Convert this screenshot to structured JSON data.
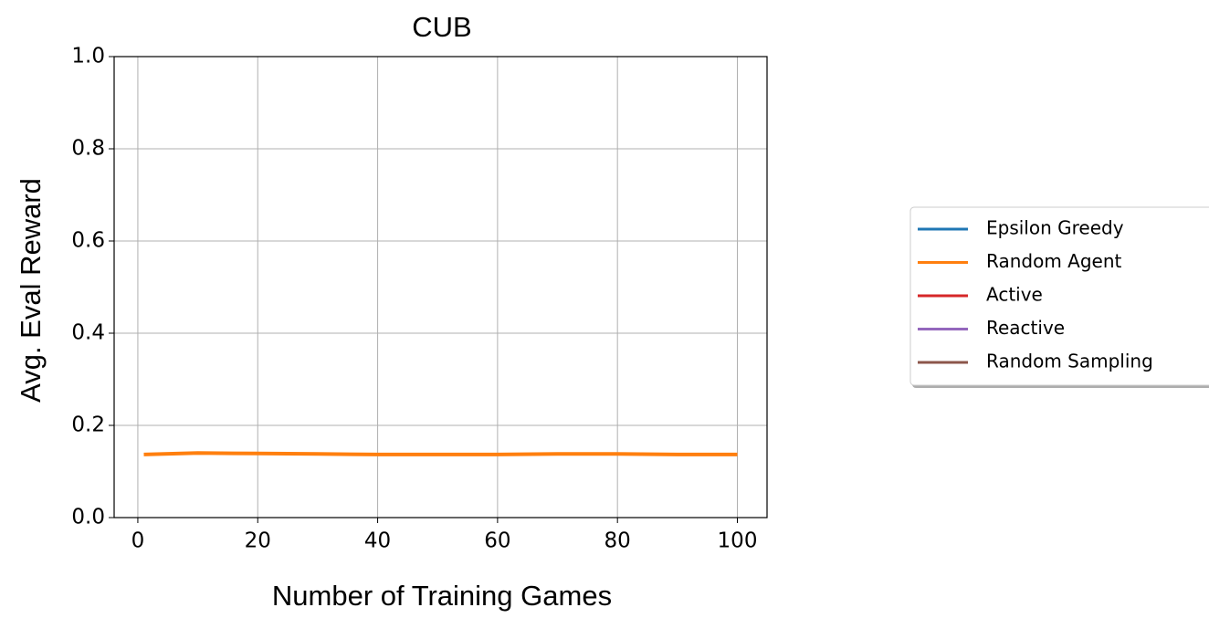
{
  "chart_data": {
    "type": "line",
    "title": "CUB",
    "xlabel": "Number of Training Games",
    "ylabel": "Avg. Eval Reward",
    "x": [
      1,
      10,
      20,
      30,
      40,
      50,
      60,
      70,
      80,
      90,
      100
    ],
    "series": [
      {
        "name": "Epsilon Greedy",
        "color": "#1f77b4",
        "values": [
          null,
          null,
          null,
          null,
          null,
          null,
          null,
          null,
          null,
          null,
          null
        ]
      },
      {
        "name": "Random Agent",
        "color": "#ff7f0e",
        "values": [
          0.137,
          0.14,
          0.139,
          0.138,
          0.137,
          0.137,
          0.137,
          0.138,
          0.138,
          0.137,
          0.137
        ]
      },
      {
        "name": "Active",
        "color": "#d62728",
        "values": [
          null,
          null,
          null,
          null,
          null,
          null,
          null,
          null,
          null,
          null,
          null
        ]
      },
      {
        "name": "Reactive",
        "color": "#9467bd",
        "values": [
          null,
          null,
          null,
          null,
          null,
          null,
          null,
          null,
          null,
          null,
          null
        ]
      },
      {
        "name": "Random Sampling",
        "color": "#8c564b",
        "values": [
          null,
          null,
          null,
          null,
          null,
          null,
          null,
          null,
          null,
          null,
          null
        ]
      }
    ],
    "xlim": [
      -3.95,
      104.95
    ],
    "xticks": [
      0,
      20,
      40,
      60,
      80,
      100
    ],
    "ylim": [
      0,
      1
    ],
    "yticks": [
      {
        "value": 0,
        "label": "0.0"
      },
      0.2,
      0.4,
      0.6,
      0.8,
      {
        "value": 1,
        "label": "1.0"
      }
    ],
    "grid": true,
    "legend": "right"
  }
}
